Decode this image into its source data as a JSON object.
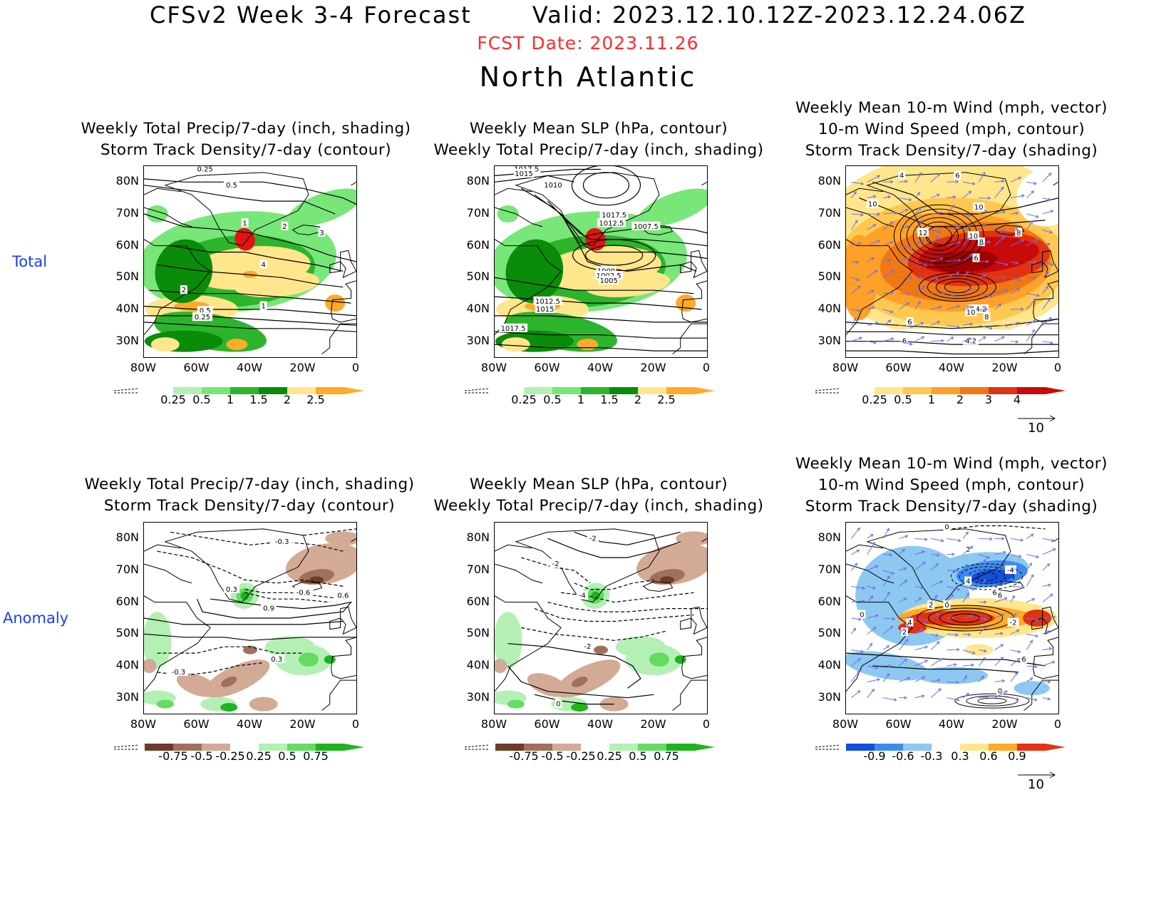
{
  "header": {
    "title": "CFSv2 Week 3-4 Forecast       Valid: 2023.12.10.12Z-2023.12.24.06Z",
    "fcst_date": "FCST Date: 2023.11.26",
    "region": "North Atlantic"
  },
  "rows": {
    "total": "Total",
    "anomaly": "Anomaly"
  },
  "panels": {
    "p1": {
      "line1": "Weekly Total Precip/7-day (inch, shading)",
      "line2": "Storm Track Density/7-day (contour)"
    },
    "p2": {
      "line1": "Weekly Mean SLP (hPa, contour)",
      "line2": "Weekly Total Precip/7-day (inch, shading)"
    },
    "p3": {
      "line1": "Weekly Mean 10-m Wind (mph, vector)",
      "line2": "10-m Wind Speed (mph, contour)",
      "line3": "Storm Track Density/7-day (shading)"
    },
    "p4": {
      "line1": "Weekly Total Precip/7-day (inch, shading)",
      "line2": "Storm Track Density/7-day (contour)"
    },
    "p5": {
      "line1": "Weekly Mean SLP (hPa, contour)",
      "line2": "Weekly Total Precip/7-day (inch, shading)"
    },
    "p6": {
      "line1": "Weekly Mean 10-m Wind (mph, vector)",
      "line2": "10-m Wind Speed (mph, contour)",
      "line3": "Storm Track Density/7-day (shading)"
    }
  },
  "axes": {
    "lat": [
      "80N",
      "70N",
      "60N",
      "50N",
      "40N",
      "30N"
    ],
    "lon": [
      "80W",
      "60W",
      "40W",
      "20W",
      "0"
    ]
  },
  "colorbars": {
    "precip_total": [
      "0.25",
      "0.5",
      "1",
      "1.5",
      "2",
      "2.5"
    ],
    "track_total": [
      "0.25",
      "0.5",
      "1",
      "2",
      "3",
      "4"
    ],
    "precip_anom": [
      "-0.75",
      "-0.5",
      "-0.25",
      "0.25",
      "0.5",
      "0.75"
    ],
    "track_anom": [
      "-0.9",
      "-0.6",
      "-0.3",
      "0.3",
      "0.6",
      "0.9"
    ]
  },
  "reference_vector": "10",
  "contour_labels": {
    "p1": [
      "0.25",
      "0.5",
      "1",
      "2",
      "3",
      "4",
      "2",
      "1",
      "0.5",
      "0.25"
    ],
    "p2": [
      "1017.5",
      "1015",
      "1010",
      "1017.5",
      "1012.5",
      "1007.5",
      "1000",
      "1002.5",
      "1005",
      "1012.5",
      "1015",
      "1017.5"
    ],
    "p3": [
      "4",
      "6",
      "10",
      "10",
      "12",
      "10",
      "8",
      "8",
      "6",
      "14.2",
      "10",
      "8",
      "6",
      "6",
      "4.2"
    ],
    "p4": [
      "-0.3",
      "0.3",
      "-0.6",
      "0.6",
      "0.9",
      "0.3",
      "-0.3"
    ],
    "p5": [
      "-2",
      "-2",
      "-4",
      "-2",
      "0"
    ],
    "p6": [
      "0",
      "2",
      "-4",
      "4",
      "6",
      "6",
      "2",
      "0",
      "0",
      "4",
      "-2",
      "2",
      "6",
      "0"
    ]
  },
  "colors": {
    "precip_total_scale": [
      "#b4f0b4",
      "#78e678",
      "#2db42d",
      "#0a8c0a",
      "#ffe68c",
      "#ffaa28",
      "#e11414"
    ],
    "track_total_scale": [
      "#ffe68c",
      "#ffc850",
      "#ffa028",
      "#f07814",
      "#e13214",
      "#c80a0a",
      "#a00000"
    ],
    "precip_anom_scale": [
      "#6e3c28",
      "#a0705a",
      "#d2aa96",
      "#ffffff",
      "#b4f0b4",
      "#64dc64",
      "#1eb41e"
    ],
    "track_anom_scale": [
      "#1450dc",
      "#3c8cf0",
      "#8cc8f0",
      "#ffffff",
      "#ffe68c",
      "#ffaa28",
      "#e13214"
    ],
    "region_label": "#1a3cff",
    "fcst_date": "#ff2a2a",
    "vector": "#6e6ef0"
  }
}
